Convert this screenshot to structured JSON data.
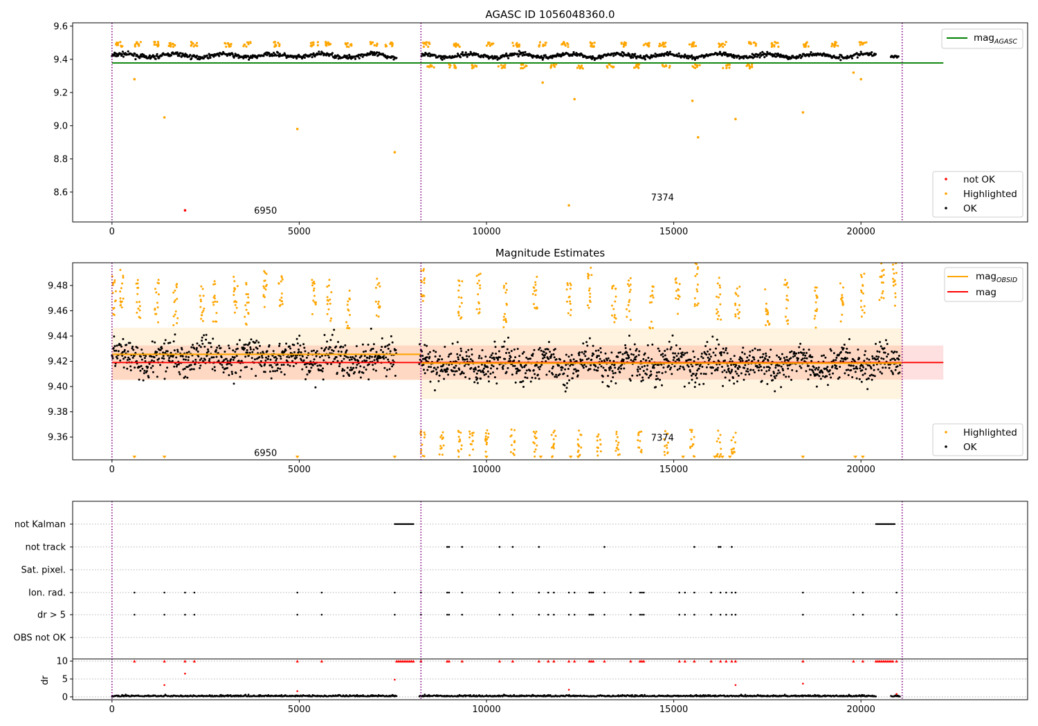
{
  "colors": {
    "ok": "#000000",
    "highlighted": "#ffa500",
    "not_ok": "#ff0000",
    "agasc_line": "#008000",
    "mag_line": "#ff0000",
    "mag_obsid_line": "#ffa500",
    "obs_boundary": "#800080",
    "dr_flagged": "#ff0000"
  },
  "chart_data": [
    {
      "id": "top",
      "type": "scatter",
      "title": "AGASC ID 1056048360.0",
      "xlim": [
        -1050,
        24450
      ],
      "ylim": [
        8.42,
        9.62
      ],
      "xticks": [
        0,
        5000,
        10000,
        15000,
        20000
      ],
      "yticks": [
        8.6,
        8.8,
        9.0,
        9.2,
        9.4,
        9.6
      ],
      "ytick_labels": [
        "8.6",
        "8.8",
        "9.0",
        "9.2",
        "9.4",
        "9.6"
      ],
      "obs_boundaries": [
        0,
        8250,
        21100
      ],
      "obsids": [
        {
          "label": "6950",
          "x": 4100,
          "y": 8.47
        },
        {
          "label": "7374",
          "x": 14700,
          "y": 8.55
        }
      ],
      "agasc_mag": 9.378,
      "agasc_line_range": [
        0,
        22200
      ],
      "legend_upper": [
        {
          "label": "mag",
          "sub": "AGASC",
          "kind": "line",
          "color": "#008000"
        }
      ],
      "legend_lower": [
        {
          "label": "not OK",
          "kind": "marker",
          "color": "#ff0000"
        },
        {
          "label": "Highlighted",
          "kind": "marker",
          "color": "#ffa500"
        },
        {
          "label": "OK",
          "kind": "marker",
          "color": "#000000"
        }
      ],
      "outliers_highlighted": [
        [
          600,
          9.28
        ],
        [
          1400,
          9.05
        ],
        [
          4950,
          8.98
        ],
        [
          7550,
          8.84
        ],
        [
          12200,
          8.52
        ],
        [
          12350,
          9.16
        ],
        [
          15500,
          9.15
        ],
        [
          15650,
          8.93
        ],
        [
          16650,
          9.04
        ],
        [
          18450,
          9.08
        ],
        [
          19800,
          9.32
        ],
        [
          20000,
          9.28
        ],
        [
          11500,
          9.26
        ]
      ],
      "outliers_not_ok": [
        [
          1950,
          8.49
        ]
      ]
    },
    {
      "id": "middle",
      "type": "scatter",
      "title": "Magnitude Estimates",
      "xlim": [
        -1050,
        24450
      ],
      "ylim": [
        9.342,
        9.498
      ],
      "xticks": [
        0,
        5000,
        10000,
        15000,
        20000
      ],
      "yticks": [
        9.36,
        9.38,
        9.4,
        9.42,
        9.44,
        9.46,
        9.48
      ],
      "ytick_labels": [
        "9.36",
        "9.38",
        "9.40",
        "9.42",
        "9.44",
        "9.46",
        "9.48"
      ],
      "obs_boundaries": [
        0,
        8250,
        21100
      ],
      "obsids": [
        {
          "label": "6950",
          "x": 4100,
          "y": 9.345
        },
        {
          "label": "7374",
          "x": 14700,
          "y": 9.357
        }
      ],
      "mag": 9.419,
      "mag_band": [
        9.4055,
        9.4325
      ],
      "mag_line_range": [
        0,
        22200
      ],
      "mag_obsid": [
        {
          "obsid": "6950",
          "x_range": [
            0,
            8250
          ],
          "value": 9.4255,
          "band": [
            9.405,
            9.4465
          ]
        },
        {
          "obsid": "7374",
          "x_range": [
            8250,
            21100
          ],
          "value": 9.4185,
          "band": [
            9.39,
            9.446
          ]
        }
      ],
      "legend_upper": [
        {
          "label": "mag",
          "sub": "OBSID",
          "kind": "line",
          "color": "#ffa500"
        },
        {
          "label": "mag",
          "kind": "line",
          "color": "#ff0000"
        }
      ],
      "legend_lower": [
        {
          "label": "Highlighted",
          "kind": "marker",
          "color": "#ffa500"
        },
        {
          "label": "OK",
          "kind": "marker",
          "color": "#000000"
        }
      ],
      "below_range_markers_x": [
        600,
        1400,
        4950,
        7550,
        10000,
        11450,
        12250,
        12450,
        15250,
        16100,
        16300,
        16500,
        18450,
        19850,
        20050
      ]
    },
    {
      "id": "flags",
      "type": "scatter",
      "xlim": [
        -1050,
        24450
      ],
      "categories": [
        "not Kalman",
        "not track",
        "Sat. pixel.",
        "Ion. rad.",
        "dr > 5",
        "OBS not OK"
      ],
      "obs_boundaries": [
        0,
        8250,
        21100
      ],
      "not_kalman_ranges": [
        [
          7550,
          8050
        ],
        [
          20400,
          20900
        ]
      ],
      "not_track_x": [
        8950,
        9000,
        9350,
        10350,
        10700,
        11400,
        13150,
        15550,
        16200,
        16250,
        16550
      ],
      "ion_rad_x": [
        600,
        1400,
        1950,
        2200,
        4950,
        5600,
        7550,
        8250,
        8950,
        9000,
        9350,
        10350,
        10700,
        11400,
        11650,
        11800,
        12200,
        12350,
        12750,
        12800,
        12850,
        13150,
        13850,
        14100,
        14150,
        14200,
        15150,
        15300,
        15550,
        16000,
        16250,
        16400,
        16550,
        16650,
        18450,
        19800,
        20050,
        20950
      ],
      "dr_gt5_x": [
        600,
        1400,
        1950,
        2200,
        4950,
        5600,
        7550,
        8250,
        8950,
        9000,
        9350,
        10350,
        10700,
        11400,
        11650,
        11800,
        12200,
        12350,
        12750,
        12800,
        12850,
        13150,
        13850,
        14100,
        14150,
        14200,
        15150,
        15300,
        15550,
        16000,
        16250,
        16400,
        16550,
        16650,
        18450,
        19800,
        20050,
        20950
      ]
    },
    {
      "id": "dr",
      "type": "scatter",
      "ylabel": "dr",
      "xlim": [
        -1050,
        24450
      ],
      "ylim": [
        -0.8,
        10.6
      ],
      "xticks": [
        0,
        5000,
        10000,
        15000,
        20000
      ],
      "yticks": [
        0,
        5,
        10
      ],
      "ytick_labels": [
        "0",
        "5",
        "10"
      ],
      "obs_boundaries": [
        0,
        8250,
        21100
      ],
      "clipped_at": 10,
      "flagged_x": [
        600,
        1400,
        1950,
        2200,
        4950,
        5600,
        7600,
        7650,
        7700,
        7750,
        7800,
        7850,
        7900,
        7950,
        8000,
        8050,
        8250,
        8950,
        9000,
        9350,
        10350,
        10700,
        11400,
        11650,
        11800,
        12200,
        12350,
        12750,
        12800,
        12850,
        13150,
        13850,
        14100,
        14150,
        14200,
        15150,
        15300,
        15550,
        16000,
        16250,
        16400,
        16550,
        16650,
        18450,
        19800,
        20050,
        20400,
        20450,
        20500,
        20550,
        20600,
        20650,
        20700,
        20750,
        20800,
        20850,
        20950
      ],
      "flagged_mid_points": [
        [
          1400,
          3.3
        ],
        [
          1950,
          6.5
        ],
        [
          4950,
          1.6
        ],
        [
          7550,
          4.8
        ],
        [
          12200,
          2.0
        ],
        [
          16650,
          3.3
        ],
        [
          18450,
          3.7
        ],
        [
          20950,
          0.8
        ]
      ]
    }
  ]
}
